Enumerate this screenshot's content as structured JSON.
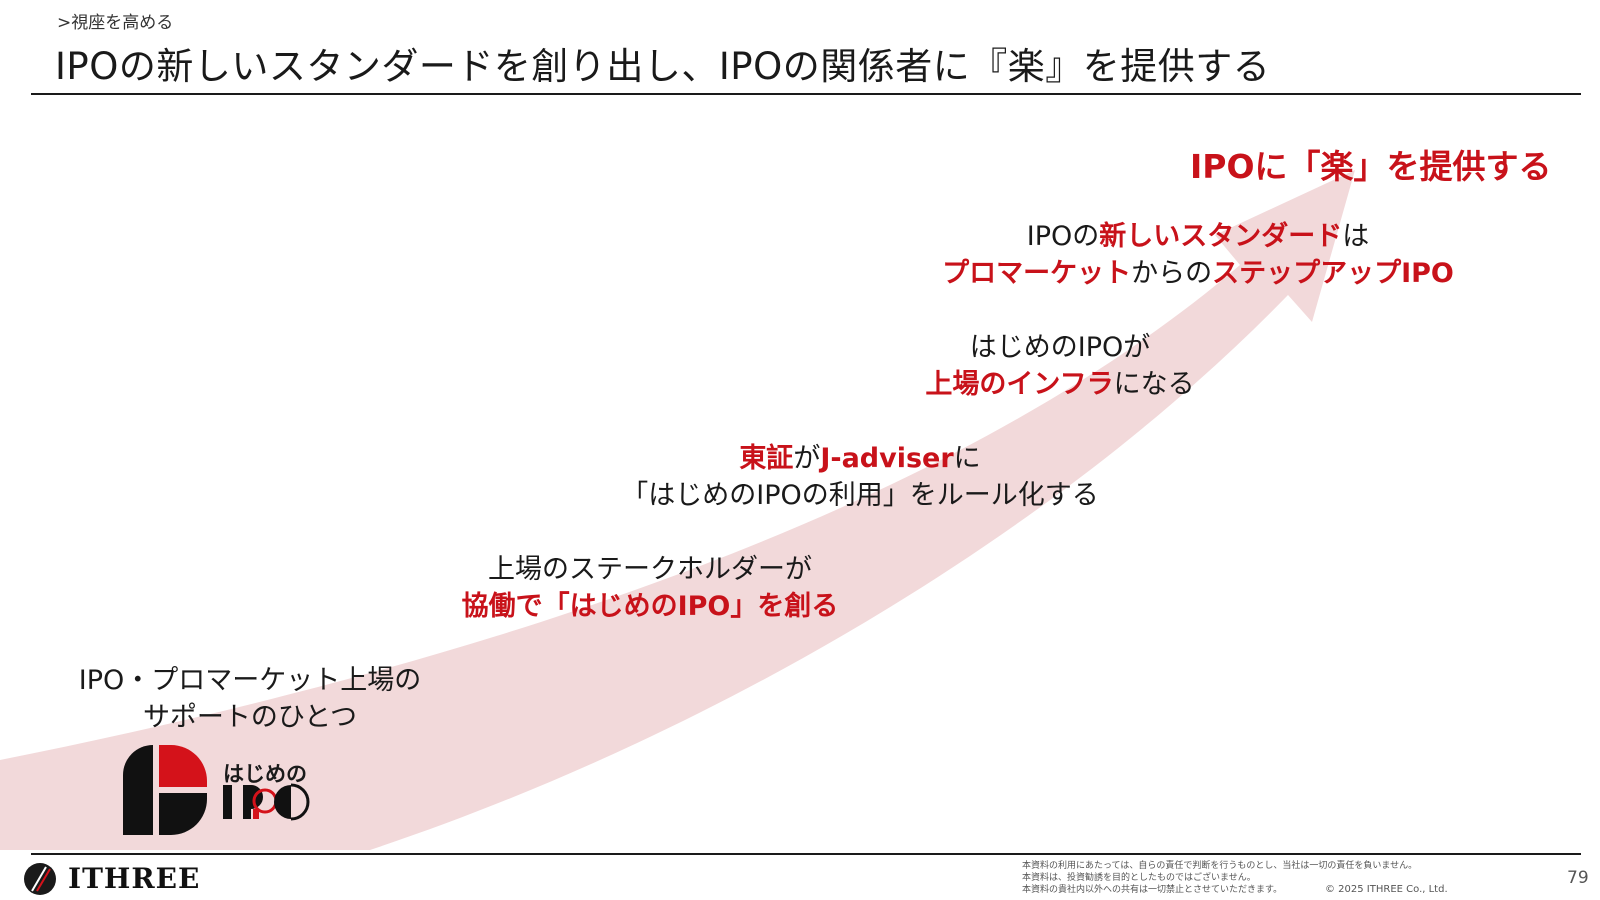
{
  "header": {
    "breadcrumb": ">視座を高める",
    "title": "IPOの新しいスタンダードを創り出し、IPOの関係者に『楽』を提供する"
  },
  "goal": "IPOに「楽」を提供する",
  "steps": [
    {
      "line1": "IPO・プロマーケット上場の",
      "line2": "サポートのひとつ"
    },
    {
      "line1": "上場のステークホルダーが",
      "line2_hl": "協働で「はじめのIPO」を創る"
    },
    {
      "line1_hl_a": "東証",
      "line1_b": "が",
      "line1_hl_c": "J-adviser",
      "line1_d": "に",
      "line2": "「はじめのIPOの利用」をルール化する"
    },
    {
      "line1": "はじめのIPOが",
      "line2_hl": "上場のインフラ",
      "line2_b": "になる"
    },
    {
      "line1_a": "IPOの",
      "line1_hl": "新しいスタンダード",
      "line1_c": "は",
      "line2_hl_a": "プロマーケット",
      "line2_b": "からの",
      "line2_hl_c": "ステップアップIPO"
    }
  ],
  "product_logo": {
    "text_top": "はじめの",
    "text_bottom": "IPO"
  },
  "footer": {
    "company": "ITHREE",
    "disclaimer": [
      "本資料の利用にあたっては、自らの責任で判断を行うものとし、当社は一切の責任を負いません。",
      "本資料は、投資勧誘を目的としたものではございません。",
      "本資料の貴社内以外への共有は一切禁止とさせていただきます。"
    ],
    "copyright": "©  2025  ITHREE Co., Ltd.",
    "page_number": "79"
  },
  "colors": {
    "accent_red": "#c8121a",
    "arrow_fill": "#f2d9da",
    "text": "#1a1a1a"
  }
}
